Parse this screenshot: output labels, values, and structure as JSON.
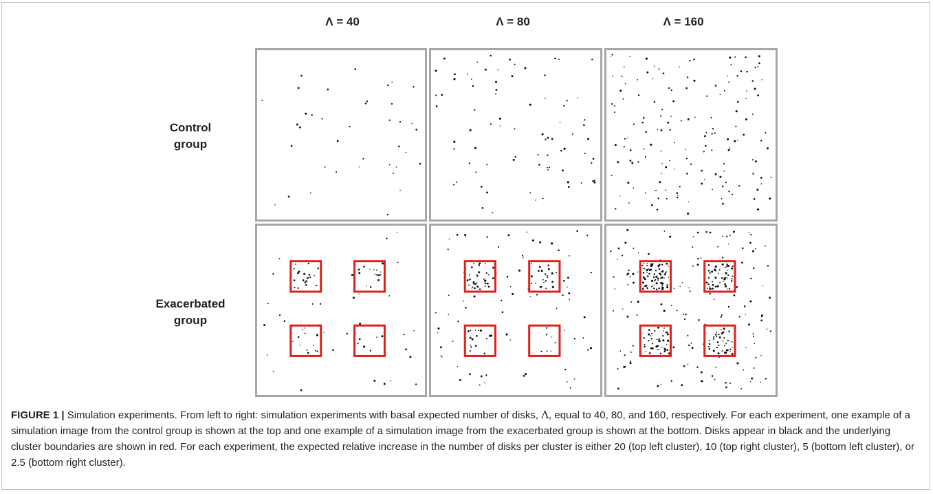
{
  "columns": [
    {
      "title": "Λ = 40",
      "control_disks": 38,
      "exacerbated_disks": [
        20,
        14,
        10,
        6
      ]
    },
    {
      "title": "Λ = 80",
      "control_disks": 80,
      "exacerbated_disks": [
        36,
        22,
        14,
        5
      ]
    },
    {
      "title": "Λ = 160",
      "control_disks": 160,
      "exacerbated_disks": [
        70,
        48,
        40,
        30
      ]
    }
  ],
  "rows": {
    "control": {
      "line1": "Control",
      "line2": "group"
    },
    "exacerbated": {
      "line1": "Exacerbated",
      "line2": "group"
    }
  },
  "colors": {
    "disk": "#111111",
    "cluster_boundary": "#e0201b",
    "panel_border": "#a6a6a6"
  },
  "caption": {
    "label": "FIGURE 1 |",
    "part1": " Simulation experiments. From left to right: simulation experiments with basal expected number of disks, ",
    "symbol": "Λ",
    "part2": ", equal to 40, 80, and 160, respectively. For each experiment, one example of a simulation image from the control group is shown at the top and one example of a simulation image from the exacerbated group is shown at the bottom. Disks appear in black and the underlying cluster boundaries are shown in red. For each experiment, the expected relative increase in the number of disks per cluster is either 20 (top left cluster), 10 (top right cluster), 5 (bottom left cluster), or 2.5 (bottom right cluster)."
  }
}
